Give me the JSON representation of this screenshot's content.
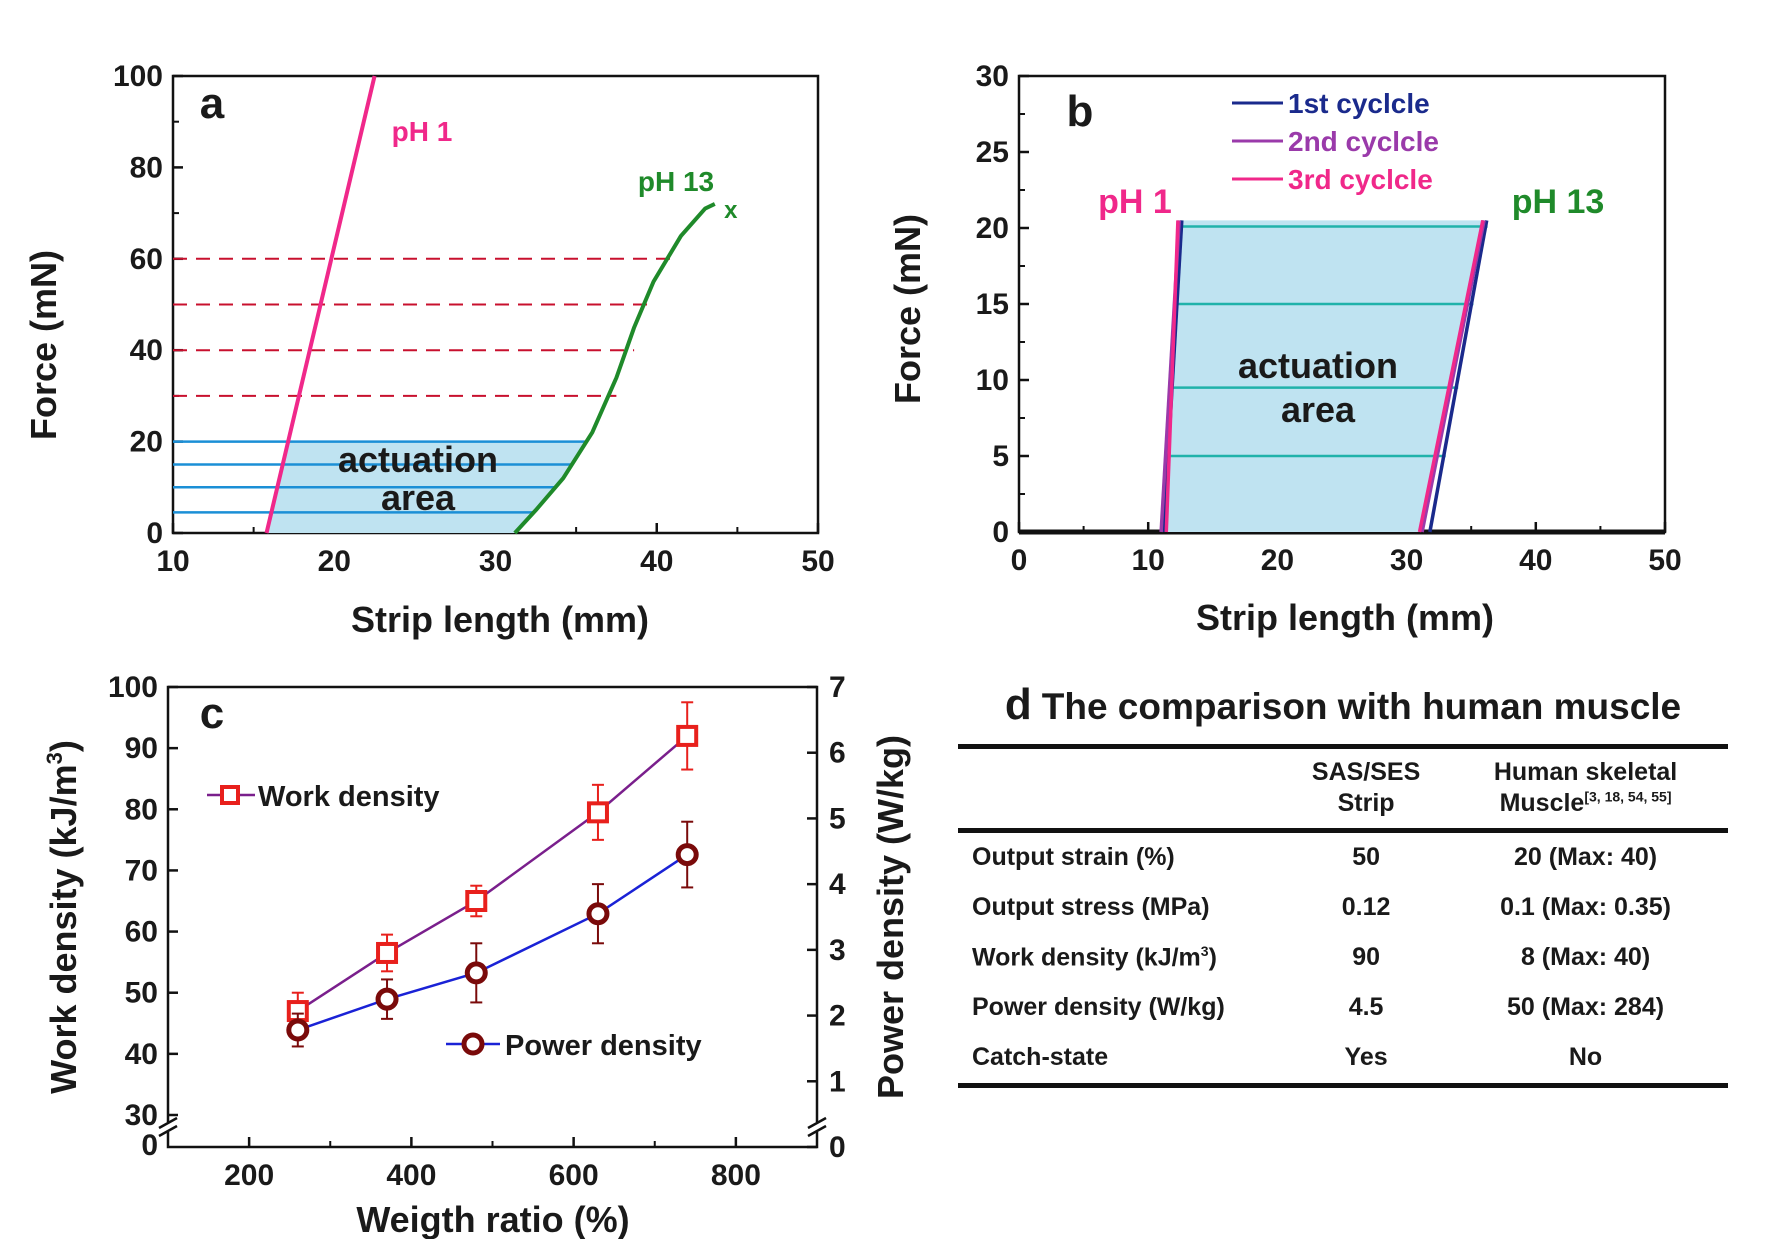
{
  "chart_data": [
    {
      "panel": "a",
      "type": "line",
      "xlabel": "Strip length (mm)",
      "ylabel": "Force (mN)",
      "xlim": [
        10,
        50
      ],
      "ylim": [
        0,
        100
      ],
      "xticks": [
        10,
        20,
        30,
        40,
        50
      ],
      "yticks": [
        0,
        20,
        40,
        60,
        80,
        100
      ],
      "series": [
        {
          "name": "pH 1",
          "color": "#f0288a",
          "x": [
            15.8,
            22.5
          ],
          "y": [
            0,
            100
          ]
        },
        {
          "name": "pH 13",
          "color": "#1f8a2a",
          "x": [
            31.2,
            32.5,
            34.2,
            36,
            37.5,
            38.6,
            39.8,
            41.5,
            43,
            43.6
          ],
          "y": [
            0,
            5,
            12,
            22,
            34,
            45,
            55,
            65,
            71,
            72
          ]
        }
      ],
      "annotations": {
        "end_marker": "x",
        "dashed_levels": [
          30,
          40,
          50,
          60
        ],
        "solid_levels": [
          4.5,
          10,
          15,
          20
        ],
        "area_label_1": "actuation",
        "area_label_2": "area"
      },
      "colors": {
        "dashed": "#c8102e",
        "solid": "#1b8fd6",
        "area": "#bfe3f1"
      }
    },
    {
      "panel": "b",
      "type": "line",
      "xlabel": "Strip length (mm)",
      "ylabel": "Force (mN)",
      "xlim": [
        0,
        50
      ],
      "ylim": [
        0,
        30
      ],
      "xticks": [
        0,
        10,
        20,
        30,
        40,
        50
      ],
      "yticks": [
        0,
        5,
        10,
        15,
        20,
        25,
        30
      ],
      "legend": [
        "1st cyclcle",
        "2nd cyclcle",
        "3rd cyclcle"
      ],
      "legend_colors": [
        "#1a2a8c",
        "#9a3aaa",
        "#f0288a"
      ],
      "series": [
        {
          "name": "1st cyclcle",
          "color": "#1a2a8c",
          "x": [
            11.2,
            12.6
          ],
          "y": [
            0,
            20.5
          ]
        },
        {
          "name": "2nd cyclcle",
          "color": "#9a3aaa",
          "x": [
            11.0,
            12.4
          ],
          "y": [
            0,
            20.5
          ]
        },
        {
          "name": "3rd cyclcle",
          "color": "#f0288a",
          "x": [
            11.4,
            12.3
          ],
          "y": [
            0,
            20.5
          ]
        },
        {
          "name": "1st cyclcle",
          "color": "#1a2a8c",
          "x": [
            31.8,
            36.2
          ],
          "y": [
            0,
            20.5
          ]
        },
        {
          "name": "2nd cyclcle",
          "color": "#9a3aaa",
          "x": [
            31.2,
            36.0
          ],
          "y": [
            0,
            20.5
          ]
        },
        {
          "name": "3rd cyclcle",
          "color": "#f0288a",
          "x": [
            31.0,
            35.9
          ],
          "y": [
            0,
            20.5
          ]
        }
      ],
      "annotations": {
        "left_label": "pH 1",
        "right_label": "pH 13",
        "levels": [
          5,
          9.5,
          15,
          20.1
        ],
        "area_label_1": "actuation",
        "area_label_2": "area"
      },
      "colors": {
        "level": "#20b2aa",
        "area": "#bfe3f1"
      }
    },
    {
      "panel": "c",
      "type": "line",
      "xlabel": "Weigth ratio (%)",
      "ylabel": "Work density (kJ/m",
      "ylabel_sup": "3",
      "ylabel_end": ")",
      "y2label": "Power density (W/kg)",
      "xlim": [
        100,
        900
      ],
      "ylim": [
        30,
        100
      ],
      "y2lim": [
        0,
        7
      ],
      "xticks": [
        200,
        400,
        600,
        800
      ],
      "yticks": [
        30,
        40,
        50,
        60,
        70,
        80,
        90,
        100
      ],
      "y2ticks": [
        0,
        1,
        2,
        3,
        4,
        5,
        6,
        7
      ],
      "y_break_label": "0",
      "series": [
        {
          "name": "Work density",
          "axis": "left",
          "color": "#7a1f8c",
          "marker_color": "#e8201c",
          "x": [
            260,
            370,
            480,
            630,
            740
          ],
          "y": [
            47,
            56.5,
            65,
            79.5,
            92
          ],
          "err": [
            3,
            3,
            2.5,
            4.5,
            5.5
          ]
        },
        {
          "name": "Power density",
          "axis": "right",
          "color": "#1a22d6",
          "marker_color": "#7a0a0a",
          "x": [
            260,
            370,
            480,
            630,
            740
          ],
          "y": [
            1.78,
            2.25,
            2.65,
            3.55,
            4.45
          ],
          "err": [
            0.25,
            0.3,
            0.45,
            0.45,
            0.5
          ]
        }
      ]
    }
  ],
  "panels": {
    "a": "a",
    "b": "b",
    "c": "c"
  },
  "table": {
    "letter": "d",
    "title": "The comparison with human muscle",
    "header": {
      "col1": "",
      "col2_line1": "SAS/SES",
      "col2_line2": "Strip",
      "col3_line1": "Human skeletal",
      "col3_line2": "Muscle",
      "col3_refs": "[3, 18, 54, 55]"
    },
    "rows": [
      {
        "label": "Output strain (%)",
        "strip": "50",
        "muscle": "20 (Max: 40)"
      },
      {
        "label": "Output stress (MPa)",
        "strip": "0.12",
        "muscle": "0.1 (Max: 0.35)"
      },
      {
        "label": "Work density (kJ/m",
        "label_sup": "3",
        "label_end": ")",
        "strip": "90",
        "muscle": "8 (Max: 40)"
      },
      {
        "label": "Power density (W/kg)",
        "strip": "4.5",
        "muscle": "50 (Max: 284)"
      },
      {
        "label": "Catch-state",
        "strip": "Yes",
        "muscle": "No"
      }
    ]
  }
}
